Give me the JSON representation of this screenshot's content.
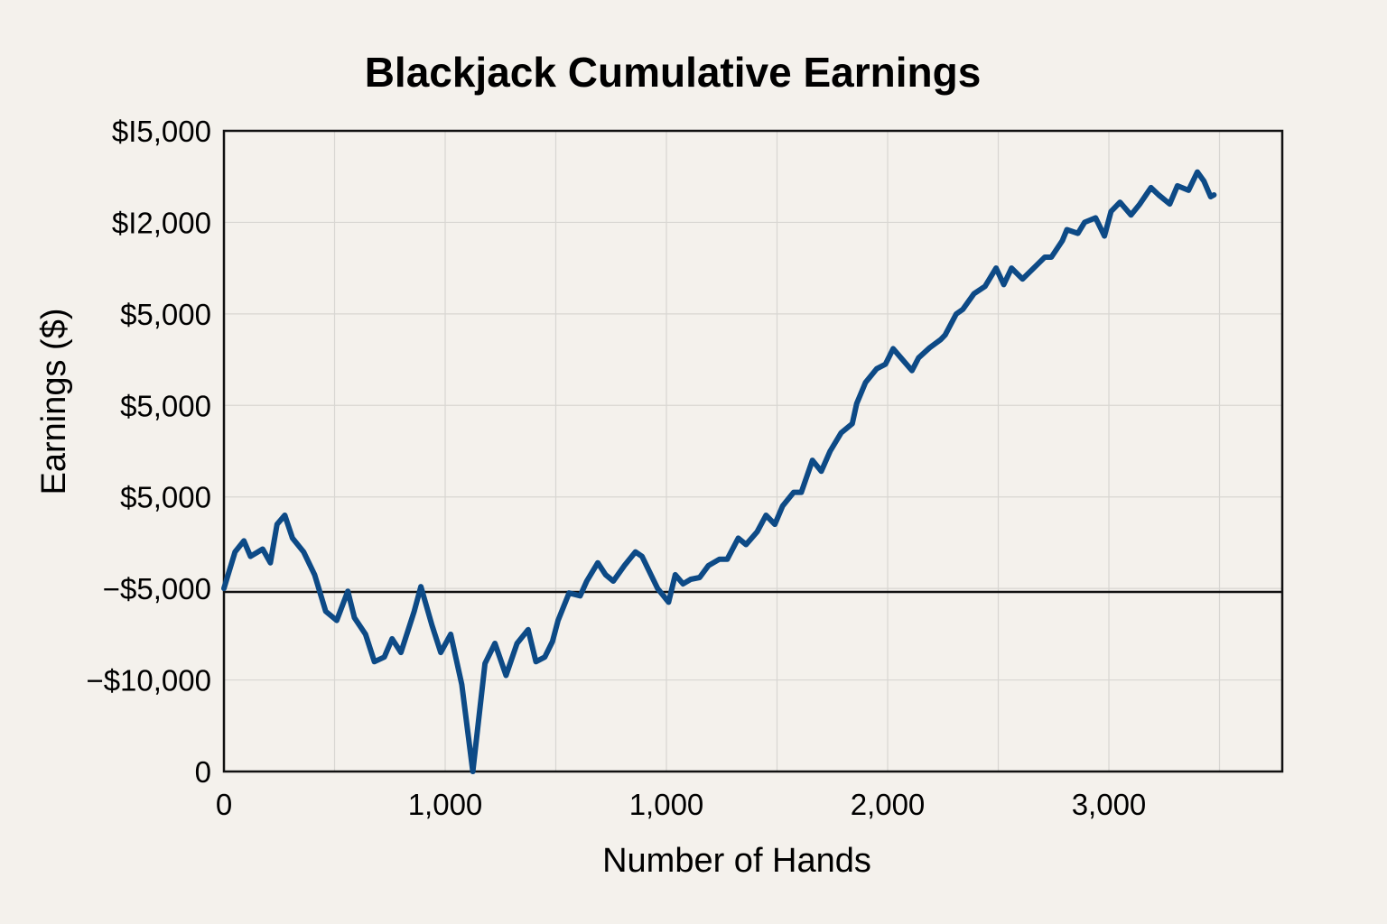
{
  "chart_data": {
    "type": "line",
    "title": "Blackjack Cumulative Earnings",
    "xlabel": "Number of Hands",
    "ylabel": "Earnings ($)",
    "grid": true,
    "legend": "none",
    "colors": {
      "line": "#0d4a86",
      "grid": "#d8d6d2",
      "frame": "#111111",
      "background": "#f4f1ec"
    },
    "x_ticks": [
      "0",
      "1,000",
      "1,000",
      "2,000",
      "3,000"
    ],
    "y_ticks": [
      "$I5,000",
      "$I2,000",
      "$5,000",
      "$5,000",
      "$5,000",
      "−$5,000",
      "−$10,000",
      "0"
    ],
    "baseline_label": "−$5,000",
    "ylim_level_index": [
      0,
      7
    ],
    "series": [
      {
        "values_level_index": [
          [
            0,
            5.0
          ],
          [
            0.1,
            4.6
          ],
          [
            0.18,
            4.48
          ],
          [
            0.24,
            4.65
          ],
          [
            0.35,
            4.57
          ],
          [
            0.42,
            4.72
          ],
          [
            0.48,
            4.3
          ],
          [
            0.55,
            4.2
          ],
          [
            0.62,
            4.45
          ],
          [
            0.72,
            4.6
          ],
          [
            0.82,
            4.85
          ],
          [
            0.92,
            5.25
          ],
          [
            1.02,
            5.35
          ],
          [
            1.12,
            5.03
          ],
          [
            1.18,
            5.32
          ],
          [
            1.28,
            5.5
          ],
          [
            1.36,
            5.8
          ],
          [
            1.45,
            5.75
          ],
          [
            1.52,
            5.55
          ],
          [
            1.6,
            5.7
          ],
          [
            1.68,
            5.4
          ],
          [
            1.72,
            5.25
          ],
          [
            1.78,
            4.98
          ],
          [
            1.88,
            5.4
          ],
          [
            1.96,
            5.7
          ],
          [
            2.05,
            5.5
          ],
          [
            2.15,
            6.05
          ],
          [
            2.25,
            7.0
          ],
          [
            2.36,
            5.82
          ],
          [
            2.45,
            5.6
          ],
          [
            2.55,
            5.95
          ],
          [
            2.65,
            5.6
          ],
          [
            2.75,
            5.45
          ],
          [
            2.82,
            5.8
          ],
          [
            2.9,
            5.75
          ],
          [
            2.97,
            5.58
          ],
          [
            3.02,
            5.35
          ],
          [
            3.12,
            5.05
          ],
          [
            3.22,
            5.08
          ],
          [
            3.28,
            4.92
          ],
          [
            3.38,
            4.72
          ],
          [
            3.45,
            4.85
          ],
          [
            3.52,
            4.92
          ],
          [
            3.62,
            4.75
          ],
          [
            3.72,
            4.6
          ],
          [
            3.78,
            4.65
          ],
          [
            3.92,
            5.0
          ],
          [
            4.02,
            5.15
          ],
          [
            4.08,
            4.85
          ],
          [
            4.15,
            4.95
          ],
          [
            4.22,
            4.9
          ],
          [
            4.3,
            4.88
          ],
          [
            4.38,
            4.75
          ],
          [
            4.48,
            4.68
          ],
          [
            4.55,
            4.68
          ],
          [
            4.65,
            4.45
          ],
          [
            4.72,
            4.52
          ],
          [
            4.82,
            4.38
          ],
          [
            4.9,
            4.2
          ],
          [
            4.98,
            4.3
          ],
          [
            5.05,
            4.1
          ],
          [
            5.15,
            3.95
          ],
          [
            5.22,
            3.95
          ],
          [
            5.32,
            3.6
          ],
          [
            5.4,
            3.72
          ],
          [
            5.48,
            3.5
          ],
          [
            5.58,
            3.3
          ],
          [
            5.68,
            3.2
          ],
          [
            5.72,
            2.98
          ],
          [
            5.8,
            2.75
          ],
          [
            5.9,
            2.6
          ],
          [
            5.98,
            2.55
          ],
          [
            6.05,
            2.38
          ],
          [
            6.12,
            2.48
          ],
          [
            6.22,
            2.62
          ],
          [
            6.28,
            2.48
          ],
          [
            6.38,
            2.37
          ],
          [
            6.48,
            2.28
          ],
          [
            6.52,
            2.23
          ],
          [
            6.62,
            2.0
          ],
          [
            6.68,
            1.95
          ],
          [
            6.78,
            1.78
          ],
          [
            6.88,
            1.7
          ],
          [
            6.98,
            1.5
          ],
          [
            7.05,
            1.68
          ],
          [
            7.12,
            1.5
          ],
          [
            7.22,
            1.62
          ],
          [
            7.32,
            1.5
          ],
          [
            7.42,
            1.38
          ],
          [
            7.48,
            1.38
          ],
          [
            7.58,
            1.2
          ],
          [
            7.62,
            1.08
          ],
          [
            7.72,
            1.12
          ],
          [
            7.78,
            1.0
          ],
          [
            7.88,
            0.95
          ],
          [
            7.96,
            1.15
          ],
          [
            8.02,
            0.88
          ],
          [
            8.1,
            0.78
          ],
          [
            8.2,
            0.92
          ],
          [
            8.28,
            0.8
          ],
          [
            8.38,
            0.62
          ],
          [
            8.45,
            0.7
          ],
          [
            8.55,
            0.8
          ],
          [
            8.62,
            0.6
          ],
          [
            8.72,
            0.65
          ],
          [
            8.8,
            0.45
          ],
          [
            8.86,
            0.55
          ],
          [
            8.92,
            0.72
          ],
          [
            8.95,
            0.7
          ]
        ]
      }
    ]
  }
}
